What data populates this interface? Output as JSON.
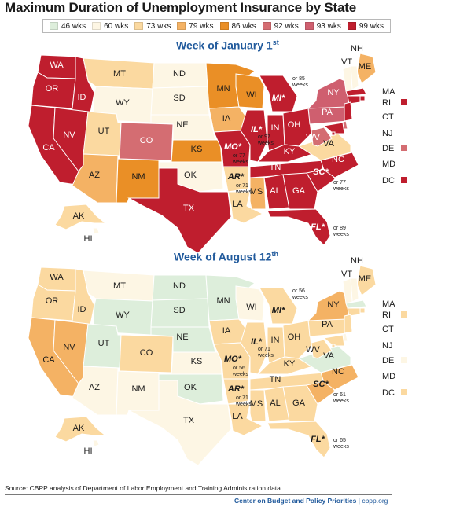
{
  "title": "Maximum Duration of Unemployment Insurance by State",
  "legend": [
    {
      "label": "46 wks",
      "color": "#ddeedb"
    },
    {
      "label": "60 wks",
      "color": "#fdf6e4"
    },
    {
      "label": "73 wks",
      "color": "#fbd9a0"
    },
    {
      "label": "79 wks",
      "color": "#f4b264"
    },
    {
      "label": "86 wks",
      "color": "#ea8f26"
    },
    {
      "label": "92 wks",
      "color": "#d46d72"
    },
    {
      "label": "93 wks",
      "color": "#cf5f6f"
    },
    {
      "label": "99 wks",
      "color": "#bf1e2e"
    }
  ],
  "map1": {
    "heading": "Week of January 1",
    "heading_sup": "st",
    "states": [
      "WA",
      "OR",
      "ID",
      "CA",
      "NV",
      "MT",
      "WY",
      "UT",
      "CO",
      "AZ",
      "NM",
      "ND",
      "SD",
      "NE",
      "KS",
      "OK",
      "TX",
      "MN",
      "IA",
      "MO*",
      "AR*",
      "LA",
      "WI",
      "IL*",
      "MI*",
      "IN",
      "OH",
      "KY",
      "TN",
      "MS",
      "AL",
      "GA",
      "FL*",
      "SC*",
      "NC",
      "VA",
      "WV",
      "PA",
      "NY",
      "ME",
      "NH",
      "VT",
      "MA",
      "RI",
      "CT",
      "NJ",
      "DE",
      "MD",
      "DC",
      "AK",
      "HI"
    ],
    "notes": [
      "or 85 weeks",
      "or 97 weeks",
      "or 77 weeks",
      "or 71 weeks",
      "or 77 weeks",
      "or 89 weeks"
    ]
  },
  "map2": {
    "heading": "Week of August 12",
    "heading_sup": "th",
    "states": [
      "WA",
      "OR",
      "ID",
      "CA",
      "NV",
      "MT",
      "WY",
      "UT",
      "CO",
      "AZ",
      "NM",
      "ND",
      "SD",
      "NE",
      "KS",
      "OK",
      "TX",
      "MN",
      "IA",
      "MO*",
      "AR*",
      "LA",
      "WI",
      "IL*",
      "MI*",
      "IN",
      "OH",
      "KY",
      "TN",
      "MS",
      "AL",
      "GA",
      "FL*",
      "SC*",
      "NC",
      "VA",
      "WV",
      "PA",
      "NY",
      "ME",
      "NH",
      "VT",
      "MA",
      "RI",
      "CT",
      "NJ",
      "DE",
      "MD",
      "DC",
      "AK",
      "HI"
    ],
    "notes": [
      "or 56 weeks",
      "or 71 weeks",
      "or 56 weeks",
      "or 71 weeks",
      "or 61 weeks",
      "or 65 weeks"
    ]
  },
  "source": "Source: CBPP analysis of Department of Labor Employment and Training Administration data",
  "credit_org": "Center on Budget and Policy Priorities",
  "credit_sep": " | ",
  "credit_site": "cbpp.org"
}
